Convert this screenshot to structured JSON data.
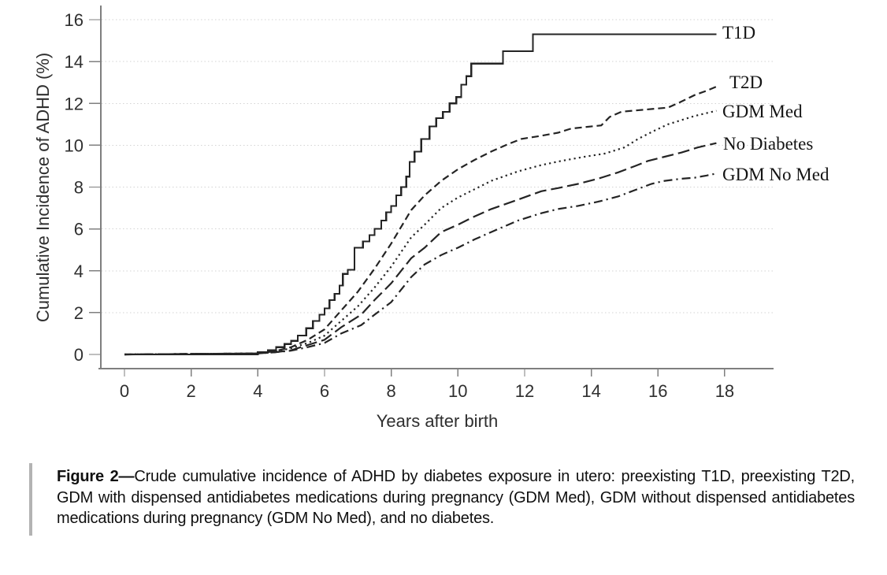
{
  "caption": {
    "label": "Figure 2—",
    "text": "Crude cumulative incidence of ADHD by diabetes exposure in utero: preexisting T1D, preexisting T2D, GDM with dispensed antidiabetes medications during pregnancy (GDM Med), GDM without dispensed antidiabetes medications during pregnancy (GDM No Med), and no diabetes."
  },
  "chart_data": {
    "type": "line",
    "subtype": "cumulative-incidence-steps",
    "title": "",
    "xlabel": "Years after birth",
    "ylabel": "Cumulative Incidence of ADHD (%)",
    "xlim": [
      -0.7,
      19.4
    ],
    "ylim": [
      0,
      16.7
    ],
    "x_ticks": [
      0,
      2,
      4,
      6,
      8,
      10,
      12,
      14,
      16,
      18
    ],
    "y_ticks": [
      0,
      2,
      4,
      6,
      8,
      10,
      12,
      14,
      16
    ],
    "grid": "horizontal dotted lines at each y tick",
    "legend_position": "labels at right end of each curve",
    "colors": {
      "line": "#242424",
      "axis": "#7f7f7f",
      "grid": "#d3d3d3",
      "text": "#2f2f2f"
    },
    "series": [
      {
        "name": "T1D",
        "style": "solid",
        "step": true,
        "points": [
          [
            0,
            0
          ],
          [
            4,
            0.1
          ],
          [
            4.3,
            0.2
          ],
          [
            4.55,
            0.35
          ],
          [
            4.8,
            0.5
          ],
          [
            5.0,
            0.65
          ],
          [
            5.2,
            0.9
          ],
          [
            5.45,
            1.25
          ],
          [
            5.65,
            1.6
          ],
          [
            5.85,
            1.9
          ],
          [
            6.0,
            2.2
          ],
          [
            6.15,
            2.6
          ],
          [
            6.3,
            2.9
          ],
          [
            6.45,
            3.3
          ],
          [
            6.55,
            3.85
          ],
          [
            6.7,
            4.05
          ],
          [
            6.9,
            5.1
          ],
          [
            7.15,
            5.4
          ],
          [
            7.35,
            5.7
          ],
          [
            7.5,
            6.0
          ],
          [
            7.7,
            6.4
          ],
          [
            7.85,
            6.8
          ],
          [
            8.0,
            7.1
          ],
          [
            8.15,
            7.6
          ],
          [
            8.3,
            8.0
          ],
          [
            8.45,
            8.5
          ],
          [
            8.55,
            9.2
          ],
          [
            8.7,
            9.7
          ],
          [
            8.9,
            10.3
          ],
          [
            9.15,
            10.9
          ],
          [
            9.35,
            11.3
          ],
          [
            9.55,
            11.6
          ],
          [
            9.75,
            12.0
          ],
          [
            9.95,
            12.3
          ],
          [
            10.1,
            12.9
          ],
          [
            10.25,
            13.3
          ],
          [
            10.4,
            13.9
          ],
          [
            11.35,
            14.5
          ],
          [
            12.25,
            15.3
          ],
          [
            17.75,
            15.3
          ]
        ]
      },
      {
        "name": "T2D",
        "style": "dashed",
        "step": false,
        "points": [
          [
            0,
            0
          ],
          [
            4,
            0.05
          ],
          [
            4.5,
            0.15
          ],
          [
            5,
            0.35
          ],
          [
            5.5,
            0.7
          ],
          [
            6,
            1.2
          ],
          [
            6.5,
            2.1
          ],
          [
            7,
            3.0
          ],
          [
            7.5,
            4.1
          ],
          [
            8,
            5.3
          ],
          [
            8.6,
            6.9
          ],
          [
            9,
            7.6
          ],
          [
            9.5,
            8.3
          ],
          [
            10,
            8.85
          ],
          [
            10.5,
            9.3
          ],
          [
            11,
            9.7
          ],
          [
            11.5,
            10.05
          ],
          [
            11.9,
            10.3
          ],
          [
            12.5,
            10.45
          ],
          [
            13,
            10.6
          ],
          [
            13.4,
            10.8
          ],
          [
            14.3,
            10.95
          ],
          [
            14.55,
            11.35
          ],
          [
            14.9,
            11.6
          ],
          [
            15.6,
            11.7
          ],
          [
            16.3,
            11.8
          ],
          [
            16.65,
            12.05
          ],
          [
            17.1,
            12.4
          ],
          [
            17.45,
            12.6
          ],
          [
            17.75,
            12.8
          ]
        ]
      },
      {
        "name": "GDM Med",
        "style": "dotted",
        "step": false,
        "points": [
          [
            0,
            0
          ],
          [
            4,
            0.05
          ],
          [
            4.5,
            0.12
          ],
          [
            5,
            0.3
          ],
          [
            5.5,
            0.55
          ],
          [
            6,
            0.9
          ],
          [
            6.5,
            1.6
          ],
          [
            7,
            2.3
          ],
          [
            7.5,
            3.2
          ],
          [
            8,
            4.2
          ],
          [
            8.6,
            5.6
          ],
          [
            9,
            6.2
          ],
          [
            9.5,
            7.0
          ],
          [
            10,
            7.5
          ],
          [
            10.5,
            7.9
          ],
          [
            11,
            8.3
          ],
          [
            11.8,
            8.75
          ],
          [
            12.5,
            9.05
          ],
          [
            13.1,
            9.25
          ],
          [
            13.8,
            9.45
          ],
          [
            14.4,
            9.6
          ],
          [
            15.0,
            9.9
          ],
          [
            15.4,
            10.3
          ],
          [
            15.9,
            10.7
          ],
          [
            16.3,
            11.0
          ],
          [
            16.7,
            11.2
          ],
          [
            17.1,
            11.4
          ],
          [
            17.5,
            11.55
          ],
          [
            17.75,
            11.65
          ]
        ]
      },
      {
        "name": "No Diabetes",
        "style": "longdash",
        "step": false,
        "points": [
          [
            0,
            0
          ],
          [
            4,
            0.05
          ],
          [
            4.5,
            0.1
          ],
          [
            5,
            0.2
          ],
          [
            5.5,
            0.45
          ],
          [
            6,
            0.7
          ],
          [
            6.5,
            1.3
          ],
          [
            7.1,
            1.9
          ],
          [
            7.5,
            2.6
          ],
          [
            8,
            3.4
          ],
          [
            8.6,
            4.6
          ],
          [
            9,
            5.1
          ],
          [
            9.5,
            5.85
          ],
          [
            10,
            6.2
          ],
          [
            10.5,
            6.6
          ],
          [
            11,
            6.95
          ],
          [
            11.8,
            7.4
          ],
          [
            12.5,
            7.8
          ],
          [
            13,
            7.95
          ],
          [
            13.6,
            8.15
          ],
          [
            14.2,
            8.4
          ],
          [
            14.8,
            8.7
          ],
          [
            15.3,
            9.0
          ],
          [
            15.7,
            9.25
          ],
          [
            16.2,
            9.45
          ],
          [
            16.7,
            9.65
          ],
          [
            17.2,
            9.9
          ],
          [
            17.75,
            10.1
          ]
        ]
      },
      {
        "name": "GDM No Med",
        "style": "dashdot",
        "step": false,
        "points": [
          [
            0,
            0
          ],
          [
            4,
            0.05
          ],
          [
            4.5,
            0.1
          ],
          [
            5,
            0.18
          ],
          [
            5.5,
            0.35
          ],
          [
            6,
            0.55
          ],
          [
            6.5,
            1.0
          ],
          [
            7.1,
            1.4
          ],
          [
            7.5,
            1.9
          ],
          [
            8,
            2.5
          ],
          [
            8.6,
            3.7
          ],
          [
            9,
            4.3
          ],
          [
            9.5,
            4.75
          ],
          [
            10,
            5.1
          ],
          [
            10.5,
            5.5
          ],
          [
            11,
            5.85
          ],
          [
            11.8,
            6.4
          ],
          [
            12.5,
            6.75
          ],
          [
            13,
            6.95
          ],
          [
            13.6,
            7.1
          ],
          [
            14.2,
            7.3
          ],
          [
            14.8,
            7.55
          ],
          [
            15.3,
            7.85
          ],
          [
            15.8,
            8.15
          ],
          [
            16.2,
            8.3
          ],
          [
            16.7,
            8.4
          ],
          [
            17.1,
            8.45
          ],
          [
            17.45,
            8.55
          ],
          [
            17.75,
            8.65
          ]
        ]
      }
    ]
  }
}
